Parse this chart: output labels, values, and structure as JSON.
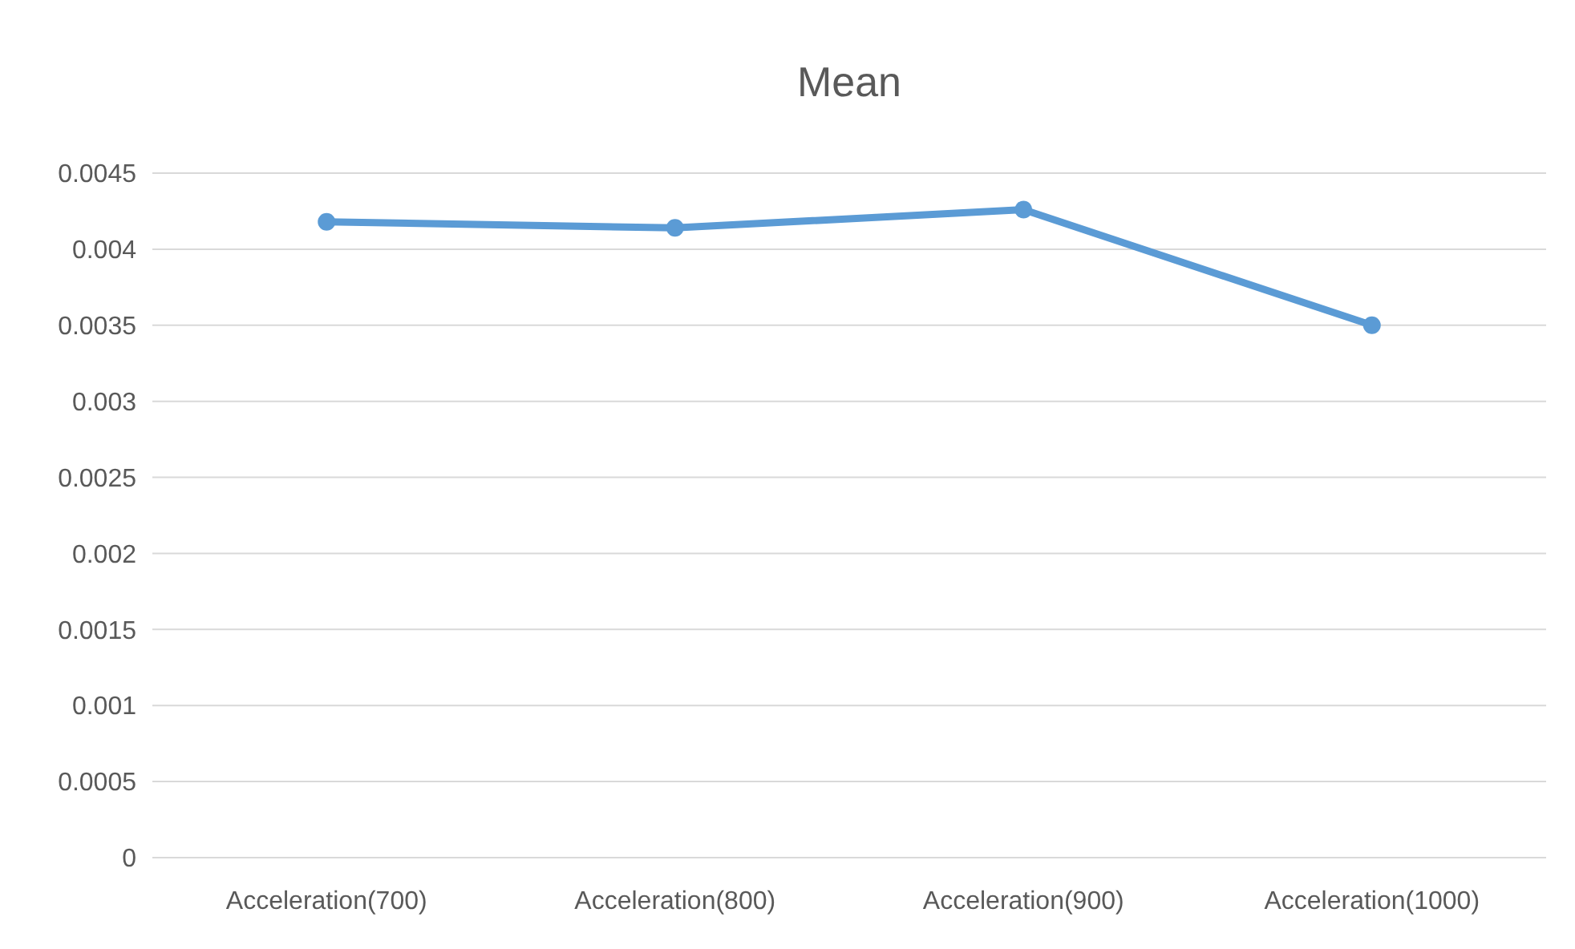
{
  "chart_data": {
    "type": "line",
    "title": "Mean",
    "categories": [
      "Acceleration(700)",
      "Acceleration(800)",
      "Acceleration(900)",
      "Acceleration(1000)"
    ],
    "series": [
      {
        "color": "#5b9bd5",
        "values": [
          0.00418,
          0.00414,
          0.00426,
          0.0035
        ]
      }
    ],
    "ylim": [
      0,
      0.0045
    ],
    "yticks": [
      0,
      0.0005,
      0.001,
      0.0015,
      0.002,
      0.0025,
      0.003,
      0.0035,
      0.004,
      0.0045
    ],
    "grid": "y",
    "marker": "circle",
    "line_style": "solid"
  }
}
